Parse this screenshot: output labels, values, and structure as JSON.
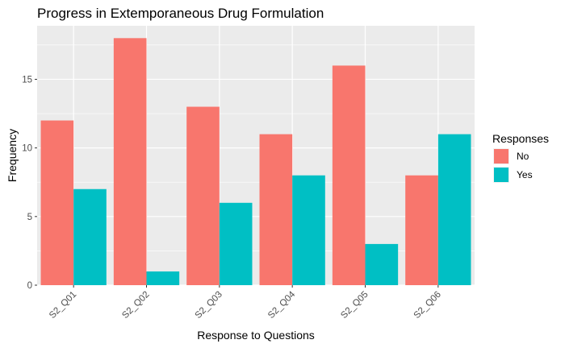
{
  "chart_data": {
    "type": "bar",
    "title": "Progress in Extemporaneous Drug Formulation",
    "xlabel": "Response to Questions",
    "ylabel": "Frequency",
    "categories": [
      "S2_Q01",
      "S2_Q02",
      "S2_Q03",
      "S2_Q04",
      "S2_Q05",
      "S2_Q06"
    ],
    "series": [
      {
        "name": "No",
        "color": "#F8766D",
        "values": [
          12,
          18,
          13,
          11,
          16,
          8
        ]
      },
      {
        "name": "Yes",
        "color": "#00BFC4",
        "values": [
          7,
          1,
          6,
          8,
          3,
          11
        ]
      }
    ],
    "ylim": [
      0,
      18.9
    ],
    "yticks": [
      0,
      5,
      10,
      15
    ],
    "grid": true,
    "legend": {
      "title": "Responses",
      "position": "right"
    },
    "panel_background": "#EBEBEB",
    "gridline_color": "#FFFFFF"
  }
}
